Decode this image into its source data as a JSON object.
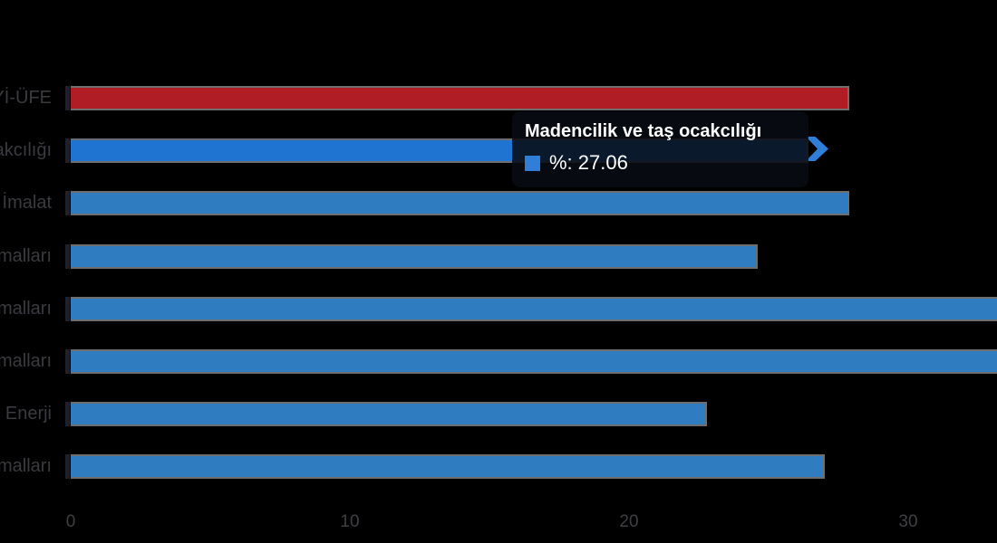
{
  "chart_data": {
    "type": "bar",
    "orientation": "horizontal",
    "title": "",
    "xlabel": "",
    "ylabel": "",
    "categories": [
      "Yİ-ÜFE",
      "Madencilik ve taş ocakcılığı",
      "İmalat",
      "Ara malları",
      "Dayanıklı tüketim malları",
      "Dayanıksız tüketim malları",
      "Enerji",
      "Sermaye malları"
    ],
    "series": [
      {
        "name": "%",
        "values": [
          27.9,
          27.06,
          27.9,
          24.6,
          33.5,
          33.5,
          22.8,
          27.0
        ]
      }
    ],
    "highlighted_index": 1,
    "clipped_at_right_edge_indices": [
      4,
      5
    ],
    "xticks": [
      "0",
      "10",
      "20",
      "30"
    ],
    "xlim": [
      0,
      33.2
    ],
    "grid": false,
    "legend": false,
    "colors": {
      "first_bar": "#b11d25",
      "bar": "#2f7cc0",
      "hovered_bar": "#1e74d0",
      "bar_border": "#6e6e6e",
      "tick_sliver": "#20202a",
      "axis_label": "#3f3f45",
      "category_label": "#3a3a40",
      "background": "#000000"
    }
  },
  "tooltip": {
    "title": "Madencilik ve taş ocakcılığı",
    "value_label": "%: 27.06",
    "swatch_color": "#2f7ed8",
    "background": "rgba(8,13,20,0.87)",
    "text_color": "#ffffff"
  }
}
